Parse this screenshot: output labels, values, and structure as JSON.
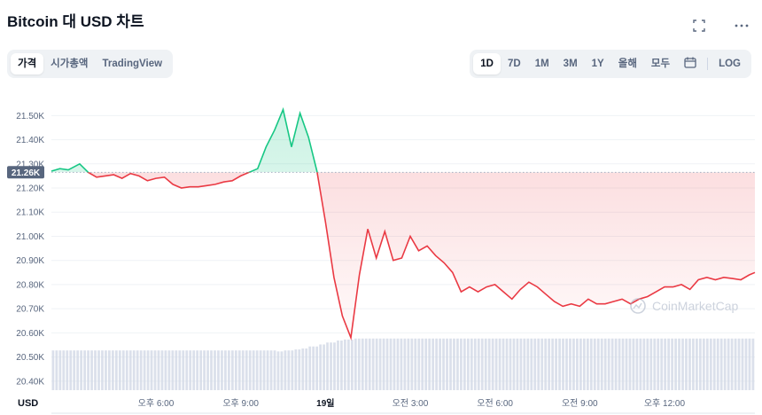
{
  "header": {
    "title": "Bitcoin 대 USD 차트"
  },
  "icons": {
    "fullscreen": "fullscreen-icon",
    "more": "more-icon",
    "calendar": "calendar-icon"
  },
  "tabs_left": [
    "가격",
    "시가총액",
    "TradingView"
  ],
  "tabs_right": [
    "1D",
    "7D",
    "1M",
    "3M",
    "1Y",
    "올해",
    "모두"
  ],
  "log_label": "LOG",
  "watermark": "CoinMarketCap",
  "colors": {
    "up": "#16c784",
    "down": "#ea3943",
    "volume": "#cfd6e4",
    "current_tag": "#58667e"
  },
  "chart_data": {
    "type": "area",
    "currency_label": "USD",
    "current_price_label": "21.26K",
    "reference_price": 21265,
    "y_ticks": [
      "21.50K",
      "21.40K",
      "21.30K",
      "21.20K",
      "21.10K",
      "21.00K",
      "20.90K",
      "20.80K",
      "20.70K",
      "20.60K",
      "20.50K",
      "20.40K"
    ],
    "y_tick_values": [
      21500,
      21400,
      21300,
      21200,
      21100,
      21000,
      20900,
      20800,
      20700,
      20600,
      20500,
      20400
    ],
    "ylim": [
      20370,
      21560
    ],
    "x_ticks": [
      "오후 6:00",
      "오후 9:00",
      "19일",
      "오전 3:00",
      "오전 6:00",
      "오전 9:00",
      "오후 12:00"
    ],
    "x_tick_hours": [
      3,
      6,
      9,
      12,
      15,
      18,
      21
    ],
    "x_bold": "19일",
    "x_range_hours": [
      -0.7,
      24.2
    ],
    "series": [
      {
        "x": [
          -0.7,
          -0.4,
          -0.1,
          0.3,
          0.6,
          0.9,
          1.2,
          1.5,
          1.8,
          2.1,
          2.4,
          2.7,
          3.0,
          3.3,
          3.6,
          3.9,
          4.2,
          4.5,
          4.8,
          5.1,
          5.4,
          5.7,
          6.0,
          6.3,
          6.6,
          6.9,
          7.2,
          7.5,
          7.8,
          8.1,
          8.4,
          8.7,
          9.0,
          9.3,
          9.6,
          9.9,
          10.2,
          10.5,
          10.8,
          11.1,
          11.4,
          11.7,
          12.0,
          12.3,
          12.6,
          12.9,
          13.2,
          13.5,
          13.8,
          14.1,
          14.4,
          14.7,
          15.0,
          15.3,
          15.6,
          15.9,
          16.2,
          16.5,
          16.8,
          17.1,
          17.4,
          17.7,
          18.0,
          18.3,
          18.6,
          18.9,
          19.2,
          19.5,
          19.8,
          20.1,
          20.4,
          20.7,
          21.0,
          21.3,
          21.6,
          21.9,
          22.2,
          22.5,
          22.8,
          23.1,
          23.4,
          23.7,
          24.0,
          24.2
        ],
        "y": [
          21270,
          21280,
          21275,
          21300,
          21265,
          21245,
          21250,
          21255,
          21240,
          21260,
          21250,
          21230,
          21240,
          21245,
          21215,
          21200,
          21205,
          21205,
          21210,
          21215,
          21225,
          21230,
          21250,
          21265,
          21280,
          21370,
          21440,
          21525,
          21370,
          21510,
          21410,
          21270,
          21060,
          20830,
          20670,
          20580,
          20840,
          21030,
          20910,
          21020,
          20900,
          20910,
          21000,
          20940,
          20960,
          20920,
          20890,
          20850,
          20770,
          20790,
          20770,
          20790,
          20800,
          20770,
          20740,
          20780,
          20810,
          20790,
          20760,
          20730,
          20710,
          20720,
          20710,
          20740,
          20720,
          20720,
          20730,
          20740,
          20720,
          20740,
          20750,
          20770,
          20790,
          20790,
          20800,
          20780,
          20820,
          20830,
          20820,
          20830,
          20825,
          20820,
          20840,
          20850
        ]
      }
    ],
    "volume_level": [
      0.4,
      0.4,
      0.4,
      0.4,
      0.4,
      0.4,
      0.4,
      0.4,
      0.4,
      0.4,
      0.4,
      0.4,
      0.4,
      0.4,
      0.4,
      0.4,
      0.4,
      0.4,
      0.4,
      0.4,
      0.4,
      0.4,
      0.4,
      0.4,
      0.4,
      0.4,
      0.4,
      0.39,
      0.4,
      0.41,
      0.42,
      0.44,
      0.46,
      0.48,
      0.5,
      0.51,
      0.52,
      0.52,
      0.52,
      0.52,
      0.52,
      0.52,
      0.52,
      0.52,
      0.52,
      0.52,
      0.52,
      0.52,
      0.52,
      0.52,
      0.52,
      0.52,
      0.52,
      0.52,
      0.52,
      0.52,
      0.52,
      0.52,
      0.52,
      0.52,
      0.52,
      0.52,
      0.52,
      0.52,
      0.52,
      0.52,
      0.52,
      0.52,
      0.52,
      0.52,
      0.52,
      0.52,
      0.52,
      0.52,
      0.52,
      0.52,
      0.52,
      0.52,
      0.52,
      0.52,
      0.52,
      0.52,
      0.52,
      0.52
    ]
  }
}
